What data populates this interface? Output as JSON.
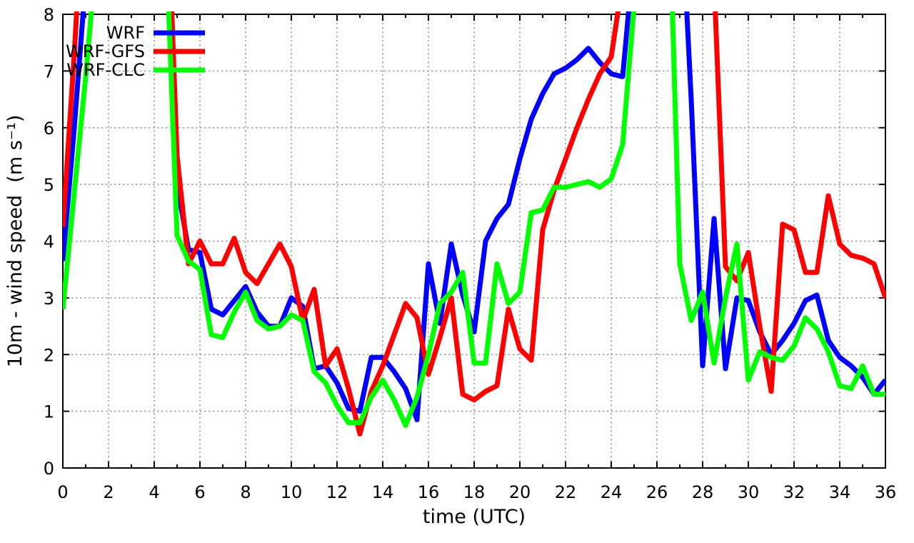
{
  "chart_data": {
    "type": "line",
    "title": "",
    "xlabel": "time (UTC)",
    "ylabel": "10m - wind speed  (m s⁻¹)",
    "xlim": [
      0,
      36
    ],
    "ylim": [
      0,
      8
    ],
    "xticks": [
      0,
      2,
      4,
      6,
      8,
      10,
      12,
      14,
      16,
      18,
      20,
      22,
      24,
      26,
      28,
      30,
      32,
      34,
      36
    ],
    "x_minor_step": 1,
    "yticks": [
      0,
      1,
      2,
      3,
      4,
      5,
      6,
      7,
      8
    ],
    "grid": "dotted",
    "legend_position": "top-left-inside",
    "background_color": "#ffffff",
    "grid_color": "#9a9a9a",
    "axis_color": "#000000",
    "x_start": 0,
    "x_step": 0.5,
    "series": [
      {
        "name": "WRF",
        "color": "#0000ff",
        "values": [
          3.65,
          6.0,
          8.6,
          10,
          10,
          10,
          10,
          10,
          10,
          10.5,
          5.0,
          3.85,
          3.8,
          2.8,
          2.7,
          2.95,
          3.2,
          2.75,
          2.5,
          2.5,
          3.0,
          2.85,
          1.75,
          1.8,
          1.5,
          1.05,
          1.0,
          1.95,
          1.95,
          1.7,
          1.4,
          0.85,
          3.6,
          2.55,
          3.95,
          3.05,
          2.4,
          4.0,
          4.4,
          4.65,
          5.45,
          6.15,
          6.6,
          6.95,
          7.05,
          7.2,
          7.4,
          7.15,
          6.95,
          6.9,
          9.1,
          10,
          10,
          10,
          10.5,
          6.5,
          1.8,
          4.4,
          1.75,
          3.0,
          2.95,
          2.4,
          2.0,
          2.25,
          2.55,
          2.95,
          3.05,
          2.25,
          1.95,
          1.8,
          1.6,
          1.3,
          1.55
        ]
      },
      {
        "name": "WRF-GFS",
        "color": "#ff0000",
        "values": [
          4.25,
          7.3,
          10.8,
          11,
          11,
          11,
          11,
          11,
          11,
          11,
          5.5,
          3.6,
          4.0,
          3.6,
          3.6,
          4.05,
          3.45,
          3.25,
          3.6,
          3.95,
          3.55,
          2.6,
          3.15,
          1.8,
          2.1,
          1.4,
          0.6,
          1.35,
          1.8,
          2.35,
          2.9,
          2.65,
          1.65,
          2.3,
          3.0,
          1.3,
          1.2,
          1.35,
          1.45,
          2.8,
          2.1,
          1.9,
          4.2,
          4.9,
          5.45,
          6.0,
          6.5,
          6.95,
          7.25,
          8.6,
          10,
          10,
          10,
          10,
          10,
          10,
          10,
          8.6,
          3.55,
          3.3,
          3.8,
          2.5,
          1.35,
          4.3,
          4.2,
          3.45,
          3.45,
          4.8,
          3.95,
          3.75,
          3.7,
          3.6,
          3.0
        ]
      },
      {
        "name": "WRF-CLC",
        "color": "#00ff00",
        "values": [
          2.8,
          4.85,
          6.9,
          9.2,
          10,
          10,
          10,
          10,
          10,
          9.5,
          4.1,
          3.65,
          3.5,
          2.35,
          2.3,
          2.75,
          3.1,
          2.6,
          2.45,
          2.5,
          2.7,
          2.6,
          1.7,
          1.5,
          1.1,
          0.8,
          0.8,
          1.25,
          1.55,
          1.2,
          0.75,
          1.25,
          2.0,
          2.9,
          3.1,
          3.45,
          1.85,
          1.85,
          3.6,
          2.9,
          3.1,
          4.5,
          4.55,
          4.95,
          4.95,
          5.0,
          5.05,
          4.95,
          5.1,
          5.7,
          8.15,
          10,
          10,
          10.5,
          3.6,
          2.6,
          3.1,
          1.85,
          3.0,
          3.95,
          1.55,
          2.05,
          1.95,
          1.9,
          2.15,
          2.65,
          2.45,
          2.05,
          1.45,
          1.4,
          1.8,
          1.3,
          1.3
        ]
      }
    ]
  }
}
